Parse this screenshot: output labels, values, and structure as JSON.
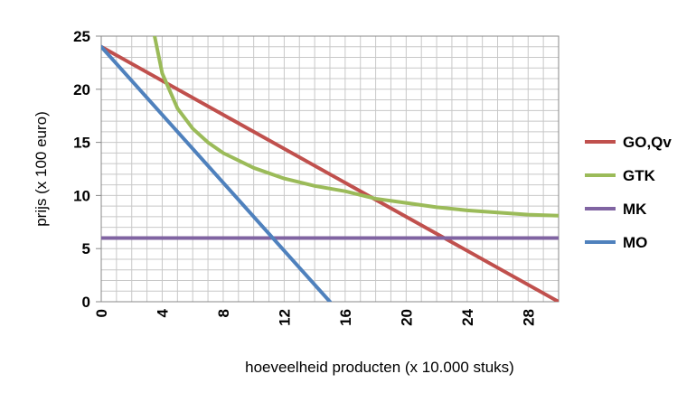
{
  "chart_data": {
    "type": "line",
    "title": "",
    "xlabel": "hoeveelheid producten (x 10.000 stuks)",
    "ylabel": "prijs (x 100 euro)",
    "xlim": [
      0,
      30
    ],
    "ylim": [
      0,
      25
    ],
    "x_ticks": [
      "0",
      "4",
      "8",
      "12",
      "16",
      "20",
      "24",
      "28"
    ],
    "y_ticks": [
      "0",
      "5",
      "10",
      "15",
      "20",
      "25"
    ],
    "grid": true,
    "legend_position": "right",
    "series": [
      {
        "name": "GO,Qv",
        "color": "#c0504d",
        "x": [
          0,
          30
        ],
        "y": [
          24,
          0
        ]
      },
      {
        "name": "GTK",
        "color": "#9bbb59",
        "x": [
          3.5,
          4,
          5,
          6,
          7,
          8,
          10,
          12,
          14,
          16,
          18,
          20,
          22,
          24,
          26,
          28,
          30
        ],
        "y": [
          25,
          21.5,
          18.2,
          16.3,
          15.0,
          14.0,
          12.6,
          11.6,
          10.9,
          10.4,
          9.7,
          9.3,
          8.9,
          8.6,
          8.4,
          8.2,
          8.1
        ]
      },
      {
        "name": "MK",
        "color": "#8064a2",
        "x": [
          0,
          30
        ],
        "y": [
          6,
          6
        ]
      },
      {
        "name": "MO",
        "color": "#4f81bd",
        "x": [
          0,
          15
        ],
        "y": [
          24,
          0
        ]
      }
    ]
  }
}
